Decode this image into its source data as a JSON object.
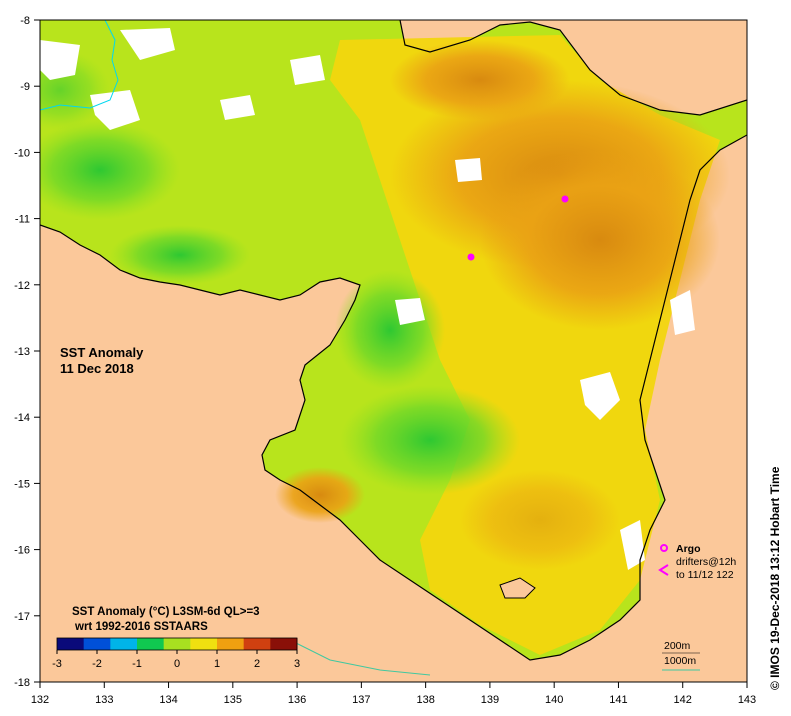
{
  "map": {
    "title_line1": "SST Anomaly",
    "title_line2": "11 Dec 2018",
    "x_ticks": [
      "132",
      "133",
      "134",
      "135",
      "136",
      "137",
      "138",
      "139",
      "140",
      "141",
      "142",
      "143"
    ],
    "y_ticks": [
      "-8",
      "-9",
      "-10",
      "-11",
      "-12",
      "-13",
      "-14",
      "-15",
      "-16",
      "-17",
      "-18"
    ],
    "land_color": "#fbc89a",
    "ocean_green": "#8ee21c",
    "ocean_yellow": "#f2de10",
    "ocean_orange": "#eaa210"
  },
  "colorbar": {
    "title_line1": "SST Anomaly (°C) L3SM-6d QL>=3",
    "title_line2": "wrt 1992-2016 SSTAARS",
    "ticks": [
      "-3",
      "-2",
      "-1",
      "0",
      "1",
      "2",
      "3"
    ],
    "colors": [
      "#0a0a7a",
      "#0050d8",
      "#00b4e8",
      "#10c850",
      "#a8e020",
      "#f0e010",
      "#f0a010",
      "#d04010",
      "#8a1008"
    ]
  },
  "legend": {
    "argo_label": "Argo",
    "drifters_label": "drifters@12h",
    "drifters_date": "to 11/12 122",
    "argo_color": "#ff00ff",
    "contour_200": "200m",
    "contour_1000": "1000m"
  },
  "credit": "© IMOS 19-Dec-2018 13:12 Hobart Time"
}
